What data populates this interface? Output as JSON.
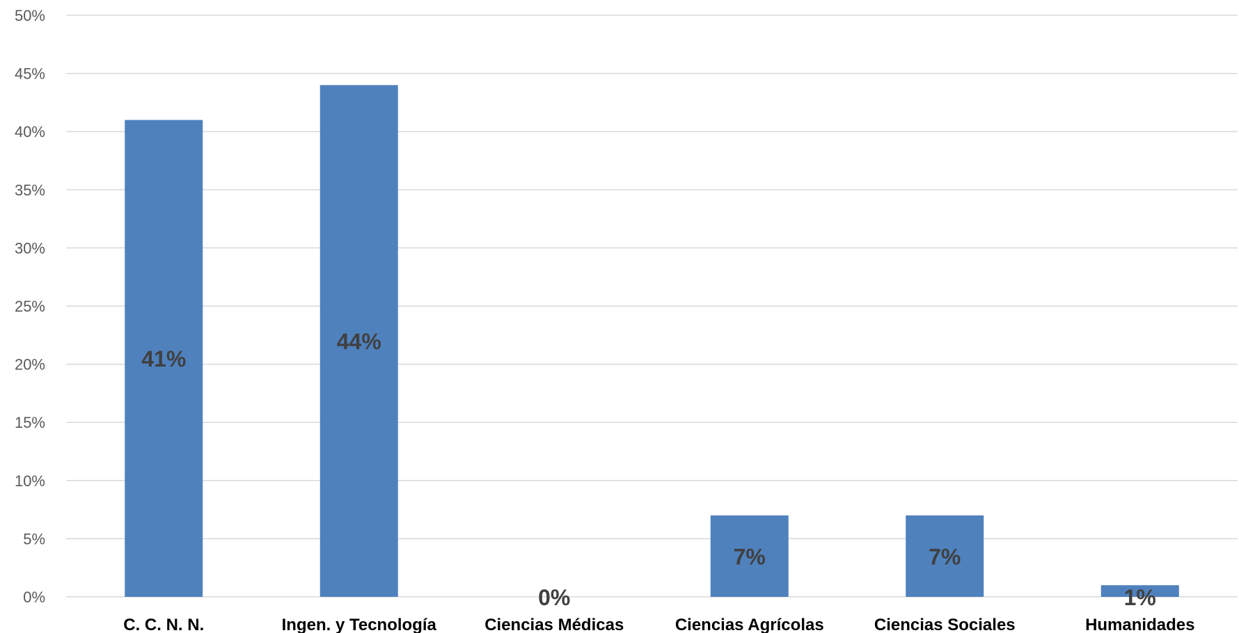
{
  "chart_data": {
    "type": "bar",
    "categories": [
      "C. C. N. N.",
      "Ingen. y Tecnología",
      "Ciencias Médicas",
      "Ciencias Agrícolas",
      "Ciencias Sociales",
      "Humanidades"
    ],
    "values": [
      41,
      44,
      0,
      7,
      7,
      1
    ],
    "data_labels": [
      "41%",
      "44%",
      "0%",
      "7%",
      "7%",
      "1%"
    ],
    "y_ticks": [
      "0%",
      "5%",
      "10%",
      "15%",
      "20%",
      "25%",
      "30%",
      "35%",
      "40%",
      "45%",
      "50%"
    ],
    "ylim": [
      0,
      50
    ],
    "grid": true,
    "legend": "none",
    "colors": {
      "bar": "#4f81bd",
      "grid": "#d9d9d9",
      "data_label": "#404040"
    }
  }
}
